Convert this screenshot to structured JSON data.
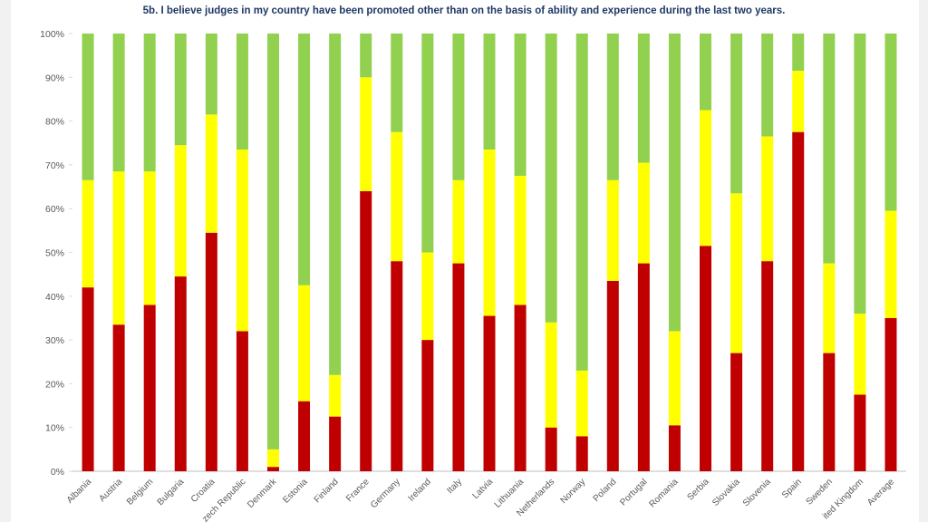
{
  "chart_data": {
    "type": "bar",
    "stacked": true,
    "percent": true,
    "title": "5b. I believe judges in my country have been promoted other than on the basis of ability and experience during the last two years.",
    "ylim": [
      0,
      100
    ],
    "yticks": [
      "0%",
      "10%",
      "20%",
      "30%",
      "40%",
      "50%",
      "60%",
      "70%",
      "80%",
      "90%",
      "100%"
    ],
    "categories": [
      "Albania",
      "Austria",
      "Belgium",
      "Bulgaria",
      "Croatia",
      "Czech Republic",
      "Denmark",
      "Estonia",
      "Finland",
      "France",
      "Germany",
      "Ireland",
      "Italy",
      "Latvia",
      "Lithuania",
      "Netherlands",
      "Norway",
      "Poland",
      "Portugal",
      "Romania",
      "Serbia",
      "Slovakia",
      "Slovenia",
      "Spain",
      "Sweden",
      "United Kingdom",
      "Average"
    ],
    "tick_labels": [
      "Albania",
      "Austria",
      "Belgium",
      "Bulgaria",
      "Croatia",
      "zech Republic",
      "Denmark",
      "Estonia",
      "Finland",
      "France",
      "Germany",
      "Ireland",
      "Italy",
      "Latvia",
      "Lithuania",
      "Netherlands",
      "Norway",
      "Poland",
      "Portugal",
      "Romania",
      "Serbia",
      "Slovakia",
      "Slovenia",
      "Spain",
      "Sweden",
      "ited Kingdom",
      "Average"
    ],
    "series": [
      {
        "name": "red",
        "color": "#c00000",
        "values": [
          42,
          33.5,
          38,
          44.5,
          54.5,
          32,
          1,
          16,
          12.5,
          64,
          48,
          30,
          47.5,
          35.5,
          38,
          10,
          8,
          43.5,
          47.5,
          10.5,
          51.5,
          27,
          48,
          77.5,
          27,
          17.5,
          35
        ]
      },
      {
        "name": "yellow",
        "color": "#ffff00",
        "values": [
          24.5,
          35,
          30.5,
          30,
          27,
          41.5,
          4,
          26.5,
          9.5,
          26,
          29.5,
          20,
          19,
          38,
          29.5,
          24,
          15,
          23,
          23,
          21.5,
          31,
          36.5,
          28.5,
          14,
          20.5,
          18.5,
          24.5
        ]
      },
      {
        "name": "green",
        "color": "#92d050",
        "values": [
          33.5,
          31.5,
          31.5,
          25.5,
          18.5,
          26.5,
          95,
          57.5,
          78,
          10,
          22.5,
          50,
          33.5,
          26.5,
          32.5,
          66,
          77,
          33.5,
          29.5,
          68,
          17.5,
          36.5,
          23.5,
          8.5,
          52.5,
          64,
          40.5
        ]
      }
    ]
  }
}
